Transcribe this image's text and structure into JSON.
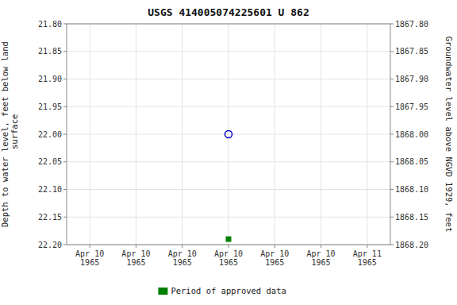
{
  "chart_data": {
    "type": "scatter",
    "title": "USGS 414005074225601 U 862",
    "y_label": "Depth to water level, feet below land\n surface",
    "y2_label": "Groundwater level above NGVD 1929, feet",
    "categories": [
      "Apr 10\n1965",
      "Apr 10\n1965",
      "Apr 10\n1965",
      "Apr 10\n1965",
      "Apr 10\n1965",
      "Apr 10\n1965",
      "Apr 11\n1965"
    ],
    "series": [
      {
        "color": "#0000cc",
        "marker": "circle",
        "values": [
          null,
          null,
          null,
          22.0,
          null,
          null,
          null
        ]
      },
      {
        "name": "Period of approved data",
        "color": "#008000",
        "marker": "square",
        "values": [
          null,
          null,
          null,
          22.19,
          null,
          null,
          null
        ]
      }
    ],
    "ylim": [
      22.2,
      21.8
    ],
    "yticks": [
      {
        "value": 21.8,
        "label": "21.80"
      },
      {
        "value": 21.85,
        "label": "21.85"
      },
      {
        "value": 21.9,
        "label": "21.90"
      },
      {
        "value": 21.95,
        "label": "21.95"
      },
      {
        "value": 22.0,
        "label": "22.00"
      },
      {
        "value": 22.05,
        "label": "22.05"
      },
      {
        "value": 22.1,
        "label": "22.10"
      },
      {
        "value": 22.15,
        "label": "22.15"
      },
      {
        "value": 22.2,
        "label": "22.20"
      }
    ],
    "y2lim": [
      1868.2,
      1867.8
    ],
    "y2ticks": [
      {
        "value": 1868.2,
        "label": "1868.20"
      },
      {
        "value": 1868.15,
        "label": "1868.15"
      },
      {
        "value": 1868.1,
        "label": "1868.10"
      },
      {
        "value": 1868.05,
        "label": "1868.05"
      },
      {
        "value": 1868.0,
        "label": "1868.00"
      },
      {
        "value": 1867.95,
        "label": "1867.95"
      },
      {
        "value": 1867.9,
        "label": "1867.90"
      },
      {
        "value": 1867.85,
        "label": "1867.85"
      },
      {
        "value": 1867.8,
        "label": "1867.80"
      }
    ],
    "grid": true,
    "legend": "bottom"
  }
}
